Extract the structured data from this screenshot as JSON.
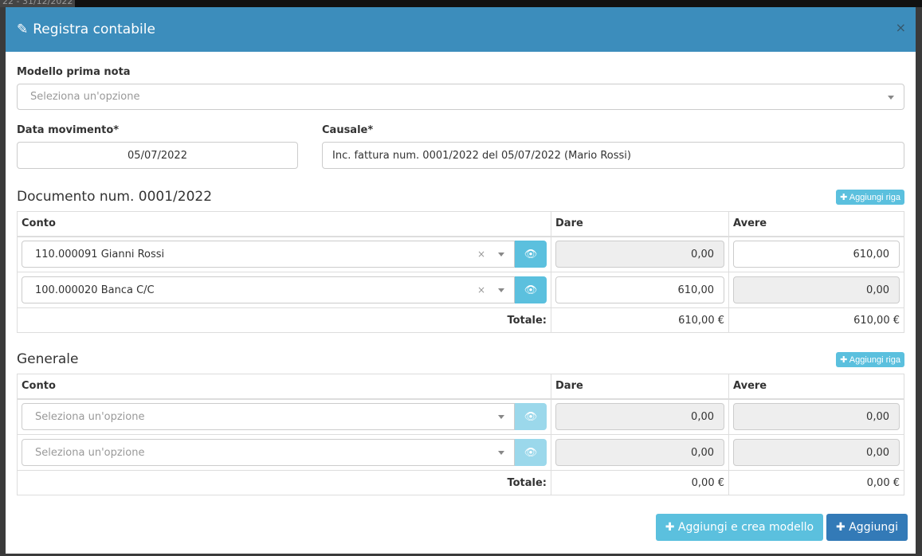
{
  "background": {
    "date_range": "22 - 31/12/2022"
  },
  "modal": {
    "title": "Registra contabile",
    "close": "×"
  },
  "modello": {
    "label": "Modello prima nota",
    "placeholder": "Seleziona un'opzione"
  },
  "data_movimento": {
    "label": "Data movimento*",
    "value": "05/07/2022"
  },
  "causale": {
    "label": "Causale*",
    "value": "Inc. fattura num. 0001/2022 del 05/07/2022 (Mario Rossi)"
  },
  "sections": [
    {
      "title": "Documento num. 0001/2022",
      "add_label": "✚ Aggiungi riga",
      "headers": [
        "Conto",
        "Dare",
        "Avere"
      ],
      "rows": [
        {
          "conto": "110.000091 Gianni Rossi",
          "dare": "0,00",
          "avere": "610,00"
        },
        {
          "conto": "100.000020 Banca C/C",
          "dare": "610,00",
          "avere": "0,00"
        }
      ],
      "total_label": "Totale:",
      "total_dare": "610,00 €",
      "total_avere": "610,00 €"
    },
    {
      "title": "Generale",
      "add_label": "✚ Aggiungi riga",
      "headers": [
        "Conto",
        "Dare",
        "Avere"
      ],
      "rows": [
        {
          "conto": "Seleziona un'opzione",
          "dare": "0,00",
          "avere": "0,00"
        },
        {
          "conto": "Seleziona un'opzione",
          "dare": "0,00",
          "avere": "0,00"
        }
      ],
      "total_label": "Totale:",
      "total_dare": "0,00 €",
      "total_avere": "0,00 €"
    }
  ],
  "footer": {
    "add_create": "✚ Aggiungi e crea modello",
    "add": "✚ Aggiungi"
  },
  "colors": {
    "header": "#3c8dbc",
    "info": "#5bc0de",
    "primary": "#337ab7"
  }
}
